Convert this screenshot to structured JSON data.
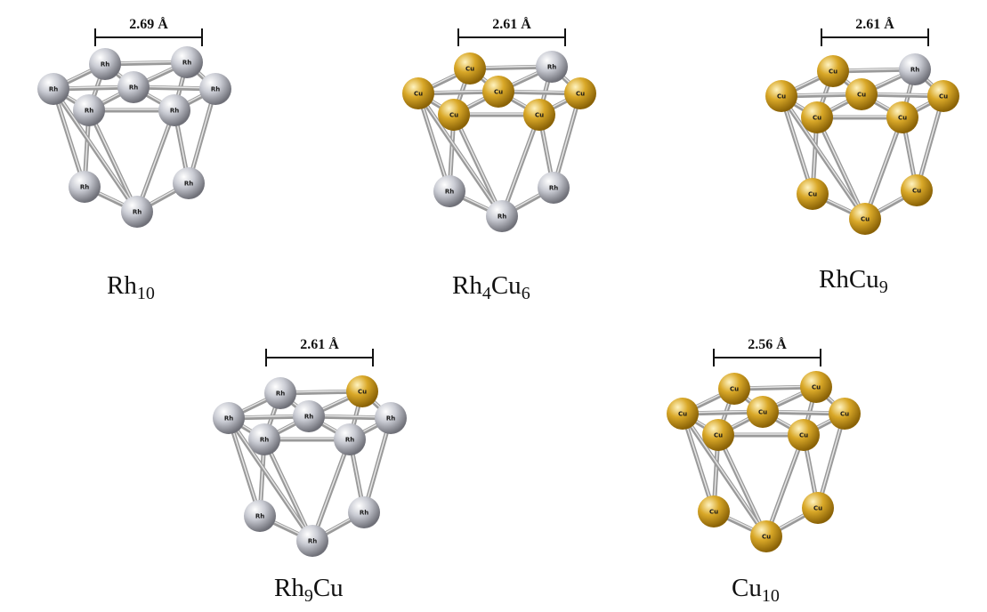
{
  "colors": {
    "rh_atom": "#c9cbd3",
    "cu_atom": "#d9a828",
    "bond": "#9a9a9a",
    "bond_highlight": "#e6e6e6",
    "text": "#111111"
  },
  "clusters": [
    {
      "id": "rh10",
      "measurement": "2.69 Å",
      "label": [
        {
          "t": "Rh",
          "sub": false
        },
        {
          "t": "10",
          "sub": true
        }
      ],
      "atoms": [
        {
          "el": "Rh",
          "text": "Rh"
        },
        {
          "el": "Rh",
          "text": "Rh"
        },
        {
          "el": "Rh",
          "text": "Rh"
        },
        {
          "el": "Rh",
          "text": "Rh"
        },
        {
          "el": "Rh",
          "text": "Rh"
        },
        {
          "el": "Rh",
          "text": "Rh"
        },
        {
          "el": "Rh",
          "text": "Rh"
        },
        {
          "el": "Rh",
          "text": "Rh"
        },
        {
          "el": "Rh",
          "text": "Rh"
        },
        {
          "el": "Rh",
          "text": "Rh"
        }
      ]
    },
    {
      "id": "rh4cu6",
      "measurement": "2.61 Å",
      "label": [
        {
          "t": "Rh",
          "sub": false
        },
        {
          "t": "4",
          "sub": true
        },
        {
          "t": "Cu",
          "sub": false
        },
        {
          "t": "6",
          "sub": true
        }
      ],
      "atoms": [
        {
          "el": "Cu",
          "text": "Cu"
        },
        {
          "el": "Cu",
          "text": "Cu"
        },
        {
          "el": "Cu",
          "text": "Cu"
        },
        {
          "el": "Rh",
          "text": "Rh"
        },
        {
          "el": "Cu",
          "text": "Cu"
        },
        {
          "el": "Cu",
          "text": "Cu"
        },
        {
          "el": "Cu",
          "text": "Cu"
        },
        {
          "el": "Rh",
          "text": "Rh"
        },
        {
          "el": "Rh",
          "text": "Rh"
        },
        {
          "el": "Rh",
          "text": "Rh"
        }
      ]
    },
    {
      "id": "rhcu9",
      "measurement": "2.61 Å",
      "label": [
        {
          "t": "RhCu",
          "sub": false
        },
        {
          "t": "9",
          "sub": true
        }
      ],
      "atoms": [
        {
          "el": "Cu",
          "text": "Cu"
        },
        {
          "el": "Cu",
          "text": "Cu"
        },
        {
          "el": "Cu",
          "text": "Cu"
        },
        {
          "el": "Rh",
          "text": "Rh"
        },
        {
          "el": "Cu",
          "text": "Cu"
        },
        {
          "el": "Cu",
          "text": "Cu"
        },
        {
          "el": "Cu",
          "text": "Cu"
        },
        {
          "el": "Cu",
          "text": "Cu"
        },
        {
          "el": "Cu",
          "text": "Cu"
        },
        {
          "el": "Cu",
          "text": "Cu"
        }
      ]
    },
    {
      "id": "rh9cu",
      "measurement": "2.61 Å",
      "label": [
        {
          "t": "Rh",
          "sub": false
        },
        {
          "t": "9",
          "sub": true
        },
        {
          "t": "Cu",
          "sub": false
        }
      ],
      "atoms": [
        {
          "el": "Rh",
          "text": "Rh"
        },
        {
          "el": "Rh",
          "text": "Rh"
        },
        {
          "el": "Rh",
          "text": "Rh"
        },
        {
          "el": "Cu",
          "text": "Cu"
        },
        {
          "el": "Rh",
          "text": "Rh"
        },
        {
          "el": "Rh",
          "text": "Rh"
        },
        {
          "el": "Rh",
          "text": "Rh"
        },
        {
          "el": "Rh",
          "text": "Rh"
        },
        {
          "el": "Rh",
          "text": "Rh"
        },
        {
          "el": "Rh",
          "text": "Rh"
        }
      ]
    },
    {
      "id": "cu10",
      "measurement": "2.56 Å",
      "label": [
        {
          "t": "Cu",
          "sub": false
        },
        {
          "t": "10",
          "sub": true
        }
      ],
      "atoms": [
        {
          "el": "Cu",
          "text": "Cu"
        },
        {
          "el": "Cu",
          "text": "Cu"
        },
        {
          "el": "Cu",
          "text": "Cu"
        },
        {
          "el": "Cu",
          "text": "Cu"
        },
        {
          "el": "Cu",
          "text": "Cu"
        },
        {
          "el": "Cu",
          "text": "Cu"
        },
        {
          "el": "Cu",
          "text": "Cu"
        },
        {
          "el": "Cu",
          "text": "Cu"
        },
        {
          "el": "Cu",
          "text": "Cu"
        },
        {
          "el": "Cu",
          "text": "Cu"
        }
      ]
    }
  ]
}
